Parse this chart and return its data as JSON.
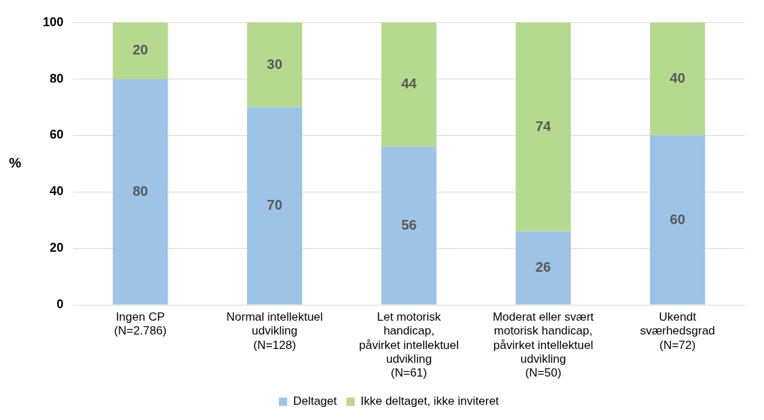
{
  "chart_data": {
    "type": "bar",
    "stacked": true,
    "ylabel": "%",
    "categories": [
      "Ingen CP\n(N=2.786)",
      "Normal intellektuel\nudvikling\n(N=128)",
      "Let motorisk\nhandicap,\npåvirket intellektuel\nudvikling\n(N=61)",
      "Moderat eller svært\nmotorisk handicap,\npåvirket intellektuel\nudvikling\n(N=50)",
      "Ukendt\nsværhedsgrad\n(N=72)"
    ],
    "series": [
      {
        "name": "Deltaget",
        "color": "#9dc3e6",
        "values": [
          80,
          70,
          56,
          26,
          60
        ]
      },
      {
        "name": "Ikke deltaget, ikke inviteret",
        "color": "#b5d98f",
        "values": [
          20,
          30,
          44,
          74,
          40
        ]
      }
    ],
    "ylim": [
      0,
      100
    ],
    "yticks": [
      0,
      20,
      40,
      60,
      80,
      100
    ],
    "grid": "y",
    "legend": "bottom",
    "data_labels": true
  }
}
